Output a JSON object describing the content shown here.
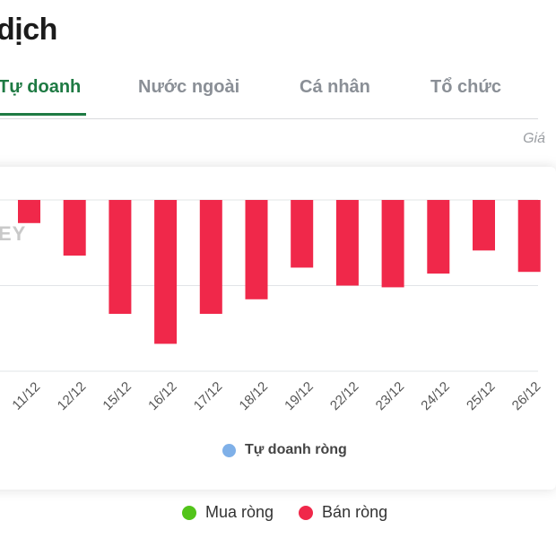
{
  "page": {
    "title": "dịch",
    "tabs": [
      {
        "label": "Tự doanh",
        "active": true
      },
      {
        "label": "Nước ngoài",
        "active": false
      },
      {
        "label": "Cá nhân",
        "active": false
      },
      {
        "label": "Tổ chức",
        "active": false
      }
    ],
    "unit_note": "Giá",
    "watermark": "EY"
  },
  "colors": {
    "accent": "#1e7a43",
    "buy": "#52c41a",
    "sell": "#f0284a",
    "series_marker": "#7fb0e8"
  },
  "chart_data": {
    "type": "bar",
    "categories": [
      "11/12",
      "12/12",
      "15/12",
      "16/12",
      "17/12",
      "18/12",
      "19/12",
      "22/12",
      "23/12",
      "24/12",
      "25/12",
      "26/12"
    ],
    "series": [
      {
        "name": "Tự doanh ròng",
        "values": [
          -2.7,
          -6.5,
          -13.3,
          -16.8,
          -13.3,
          -11.6,
          -7.9,
          -10.0,
          -10.2,
          -8.6,
          -5.9,
          -8.4
        ]
      }
    ],
    "ylim": [
      -20,
      0
    ],
    "gridlines": [
      0,
      -10,
      -20
    ],
    "legend": [
      "Mua ròng",
      "Bán ròng"
    ]
  }
}
